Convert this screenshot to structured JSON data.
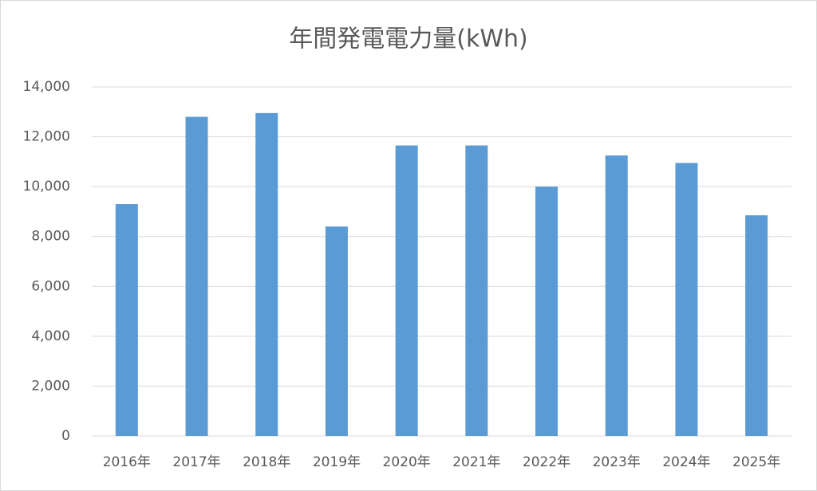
{
  "chart_data": {
    "type": "bar",
    "title": "年間発電電力量(kWh)",
    "categories": [
      "2016年",
      "2017年",
      "2018年",
      "2019年",
      "2020年",
      "2021年",
      "2022年",
      "2023年",
      "2024年",
      "2025年"
    ],
    "values": [
      9300,
      12800,
      12950,
      8400,
      11650,
      11650,
      10000,
      11250,
      10950,
      8850
    ],
    "color": "#5b9bd5",
    "ylim": [
      0,
      14000
    ],
    "yticks": [
      0,
      {
        "value": 2000,
        "label": "2,000"
      },
      {
        "value": 4000,
        "label": "4,000"
      },
      {
        "value": 6000,
        "label": "6,000"
      },
      {
        "value": 8000,
        "label": "8,000"
      },
      {
        "value": 10000,
        "label": "10,000"
      },
      {
        "value": 12000,
        "label": "12,000"
      },
      {
        "value": 14000,
        "label": "14,000"
      }
    ],
    "grid": true
  }
}
